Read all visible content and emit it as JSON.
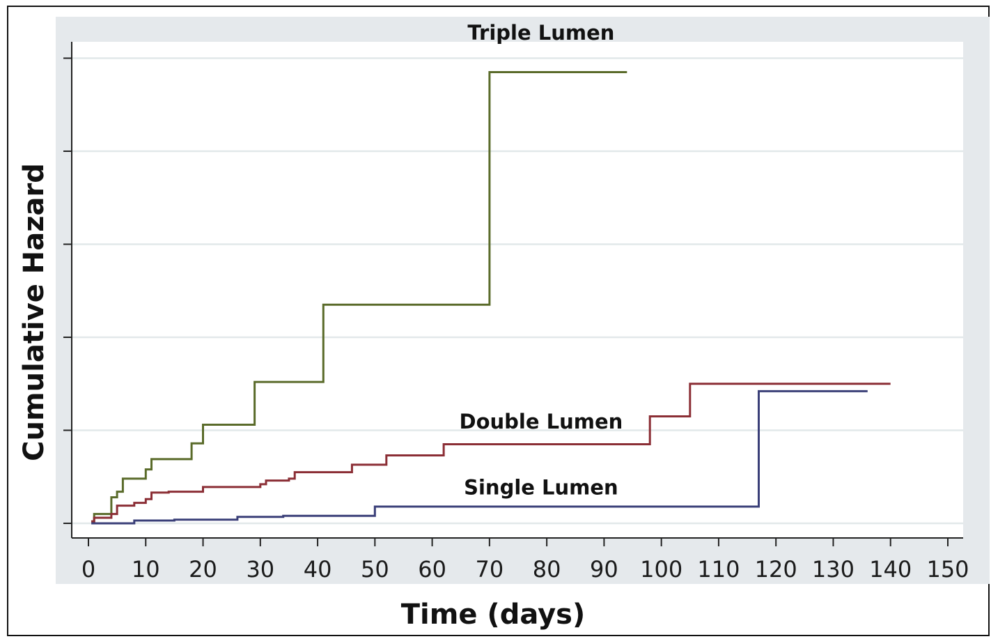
{
  "chart_data": {
    "type": "line",
    "title": "",
    "xlabel": "Time (days)",
    "ylabel": "Cumulative Hazard",
    "xlim": [
      0,
      150
    ],
    "ylim": [
      -0.16,
      5.2
    ],
    "xticks": [
      0,
      10,
      20,
      30,
      40,
      50,
      60,
      70,
      80,
      90,
      100,
      110,
      120,
      130,
      140,
      150
    ],
    "xtick_labels": [
      "0",
      "10",
      "20",
      "30",
      "40",
      "50",
      "60",
      "70",
      "80",
      "90",
      "100",
      "110",
      "120",
      "130",
      "140",
      "150"
    ],
    "yticks": [
      0,
      1,
      2,
      3,
      4,
      5
    ],
    "ytick_labels_shown": false,
    "grid": true,
    "step": true,
    "series": [
      {
        "name": "Triple Lumen",
        "color": "#5a6b2a",
        "label_anchor": [
          79,
          5.2
        ],
        "x": [
          0.5,
          1,
          4,
          5,
          6,
          10,
          11,
          18,
          20,
          29,
          41,
          70,
          94
        ],
        "y": [
          0.02,
          0.1,
          0.28,
          0.34,
          0.48,
          0.58,
          0.69,
          0.86,
          1.06,
          1.52,
          2.35,
          4.85,
          4.85
        ]
      },
      {
        "name": "Double Lumen",
        "color": "#8b2e35",
        "label_anchor": [
          79,
          1.02
        ],
        "x": [
          0.5,
          1,
          4,
          5,
          8,
          10,
          11,
          14,
          20,
          30,
          31,
          35,
          36,
          46,
          52,
          62,
          98,
          105,
          140
        ],
        "y": [
          0.02,
          0.06,
          0.1,
          0.19,
          0.22,
          0.26,
          0.33,
          0.34,
          0.39,
          0.42,
          0.46,
          0.48,
          0.55,
          0.63,
          0.73,
          0.85,
          1.15,
          1.5,
          1.5
        ]
      },
      {
        "name": "Single Lumen",
        "color": "#3a3f78",
        "label_anchor": [
          79,
          0.31
        ],
        "x": [
          0.5,
          8,
          15,
          26,
          34,
          50,
          117,
          136
        ],
        "y": [
          0.0,
          0.03,
          0.04,
          0.07,
          0.08,
          0.18,
          1.42,
          1.42
        ]
      }
    ]
  }
}
